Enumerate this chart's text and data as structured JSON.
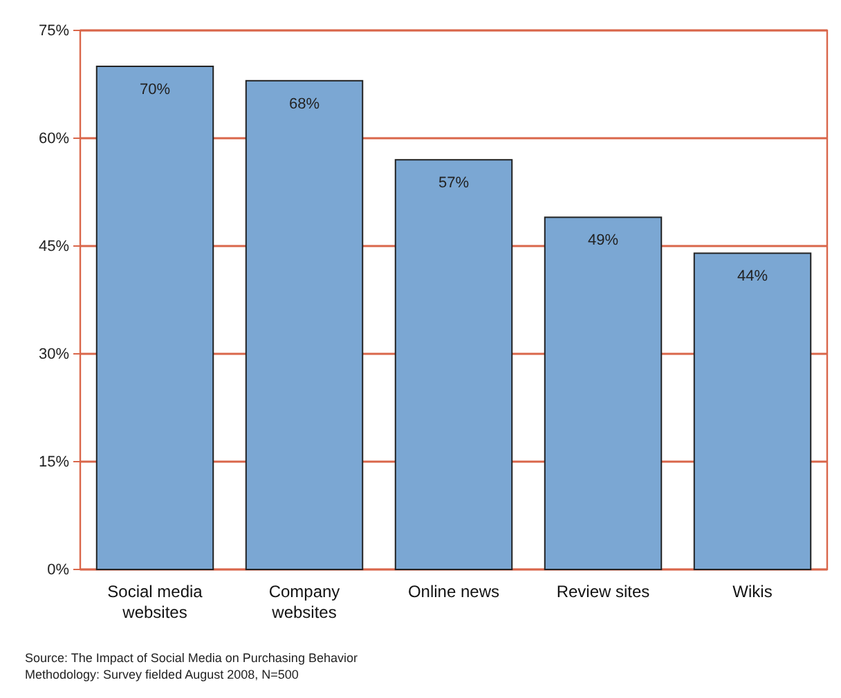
{
  "chart_data": {
    "type": "bar",
    "categories": [
      "Social media websites",
      "Company websites",
      "Online news",
      "Review sites",
      "Wikis"
    ],
    "values": [
      70,
      68,
      57,
      49,
      44
    ],
    "value_labels": [
      "70%",
      "68%",
      "57%",
      "49%",
      "44%"
    ],
    "color": "#7ba7d3",
    "ylim": [
      0,
      75
    ],
    "yticks": [
      {
        "value": 0,
        "label": "0%"
      },
      {
        "value": 15,
        "label": "15%"
      },
      {
        "value": 30,
        "label": "30%"
      },
      {
        "value": 45,
        "label": "45%"
      },
      {
        "value": 60,
        "label": "60%"
      },
      {
        "value": 75,
        "label": "75%"
      }
    ],
    "grid": "y",
    "annotations": [
      "Source: The Impact of Social Media on Purchasing Behavior",
      "Methodology: Survey fielded August 2008, N=500"
    ]
  }
}
